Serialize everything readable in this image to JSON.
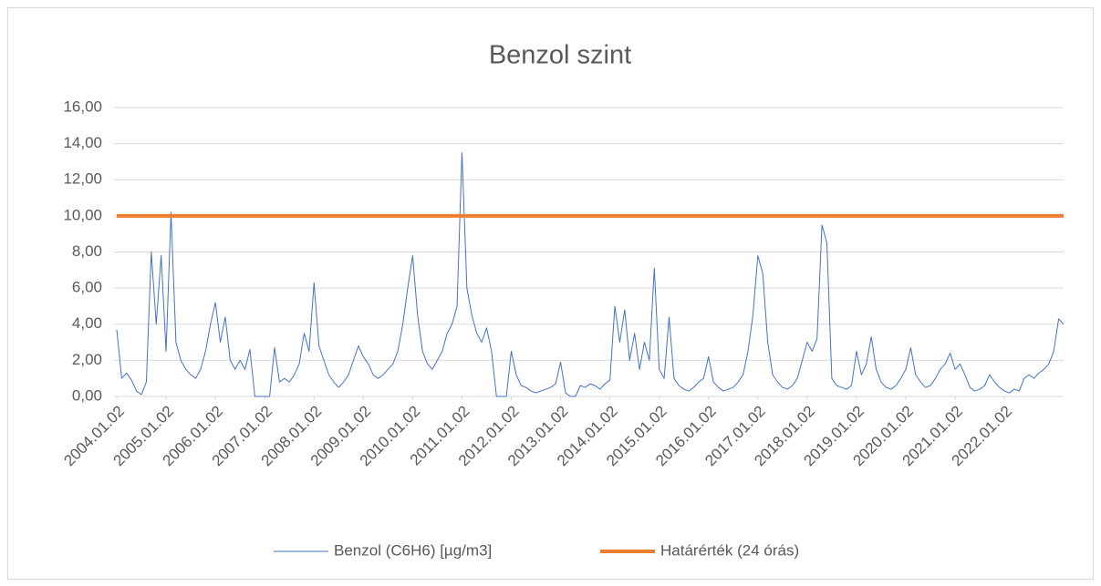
{
  "chart_data": {
    "type": "line",
    "title": "Benzol szint",
    "xlim": [
      2004,
      2023.2
    ],
    "ylim": [
      0,
      16
    ],
    "grid": true,
    "legend": "bottom",
    "yticks": [
      {
        "value": 0,
        "label": "0,00"
      },
      {
        "value": 2,
        "label": "2,00"
      },
      {
        "value": 4,
        "label": "4,00"
      },
      {
        "value": 6,
        "label": "6,00"
      },
      {
        "value": 8,
        "label": "8,00"
      },
      {
        "value": 10,
        "label": "10,00"
      },
      {
        "value": 12,
        "label": "12,00"
      },
      {
        "value": 14,
        "label": "14,00"
      },
      {
        "value": 16,
        "label": "16,00"
      }
    ],
    "xticks": [
      {
        "value": 2004,
        "label": "2004.01.02"
      },
      {
        "value": 2005,
        "label": "2005.01.02"
      },
      {
        "value": 2006,
        "label": "2006.01.02"
      },
      {
        "value": 2007,
        "label": "2007.01.02"
      },
      {
        "value": 2008,
        "label": "2008.01.02"
      },
      {
        "value": 2009,
        "label": "2009.01.02"
      },
      {
        "value": 2010,
        "label": "2010.01.02"
      },
      {
        "value": 2011,
        "label": "2011.01.02"
      },
      {
        "value": 2012,
        "label": "2012.01.02"
      },
      {
        "value": 2013,
        "label": "2013.01.02"
      },
      {
        "value": 2014,
        "label": "2014.01.02"
      },
      {
        "value": 2015,
        "label": "2015.01.02"
      },
      {
        "value": 2016,
        "label": "2016.01.02"
      },
      {
        "value": 2017,
        "label": "2017.01.02"
      },
      {
        "value": 2018,
        "label": "2018.01.02"
      },
      {
        "value": 2019,
        "label": "2019.01.02"
      },
      {
        "value": 2020,
        "label": "2020.01.02"
      },
      {
        "value": 2021,
        "label": "2021.01.02"
      },
      {
        "value": 2022,
        "label": "2022.01.02"
      }
    ],
    "series": [
      {
        "name": "Benzol (C6H6) [µg/m3]",
        "color": "#4472c4",
        "width": 1,
        "x": [
          2004,
          2004.1,
          2004.2,
          2004.3,
          2004.4,
          2004.5,
          2004.6,
          2004.7,
          2004.8,
          2004.9,
          2005,
          2005.1,
          2005.2,
          2005.3,
          2005.4,
          2005.5,
          2005.6,
          2005.7,
          2005.8,
          2005.9,
          2006,
          2006.1,
          2006.2,
          2006.3,
          2006.4,
          2006.5,
          2006.6,
          2006.7,
          2006.8,
          2006.9,
          2007,
          2007.1,
          2007.2,
          2007.3,
          2007.4,
          2007.5,
          2007.6,
          2007.7,
          2007.8,
          2007.9,
          2008,
          2008.1,
          2008.2,
          2008.3,
          2008.4,
          2008.5,
          2008.6,
          2008.7,
          2008.8,
          2008.9,
          2009,
          2009.1,
          2009.2,
          2009.3,
          2009.4,
          2009.5,
          2009.6,
          2009.7,
          2009.8,
          2009.9,
          2010,
          2010.1,
          2010.2,
          2010.3,
          2010.4,
          2010.5,
          2010.6,
          2010.7,
          2010.8,
          2010.9,
          2011,
          2011.1,
          2011.2,
          2011.3,
          2011.4,
          2011.5,
          2011.6,
          2011.7,
          2011.8,
          2011.9,
          2012,
          2012.1,
          2012.2,
          2012.3,
          2012.4,
          2012.5,
          2012.6,
          2012.7,
          2012.8,
          2012.9,
          2013,
          2013.1,
          2013.2,
          2013.3,
          2013.4,
          2013.5,
          2013.6,
          2013.7,
          2013.8,
          2013.9,
          2014,
          2014.1,
          2014.2,
          2014.3,
          2014.4,
          2014.5,
          2014.6,
          2014.7,
          2014.8,
          2014.9,
          2015,
          2015.1,
          2015.2,
          2015.3,
          2015.4,
          2015.5,
          2015.6,
          2015.7,
          2015.8,
          2015.9,
          2016,
          2016.1,
          2016.2,
          2016.3,
          2016.4,
          2016.5,
          2016.6,
          2016.7,
          2016.8,
          2016.9,
          2017,
          2017.1,
          2017.2,
          2017.3,
          2017.4,
          2017.5,
          2017.6,
          2017.7,
          2017.8,
          2017.9,
          2018,
          2018.1,
          2018.2,
          2018.3,
          2018.4,
          2018.5,
          2018.6,
          2018.7,
          2018.8,
          2018.9,
          2019,
          2019.1,
          2019.2,
          2019.3,
          2019.4,
          2019.5,
          2019.6,
          2019.7,
          2019.8,
          2019.9,
          2020,
          2020.1,
          2020.2,
          2020.3,
          2020.4,
          2020.5,
          2020.6,
          2020.7,
          2020.8,
          2020.9,
          2021,
          2021.1,
          2021.2,
          2021.3,
          2021.4,
          2021.5,
          2021.6,
          2021.7,
          2021.8,
          2021.9,
          2022,
          2022.1,
          2022.2,
          2022.3,
          2022.4,
          2022.5,
          2022.6,
          2022.7,
          2022.8,
          2022.9,
          2023,
          2023.1,
          2023.2
        ],
        "values": [
          3.7,
          1.0,
          1.3,
          0.9,
          0.3,
          0.1,
          0.8,
          8.0,
          4.0,
          7.8,
          2.5,
          10.2,
          3.0,
          2.0,
          1.5,
          1.2,
          1.0,
          1.5,
          2.5,
          4.0,
          5.2,
          3.0,
          4.4,
          2.0,
          1.5,
          2.0,
          1.5,
          2.6,
          0,
          0,
          0,
          0,
          2.7,
          0.8,
          1.0,
          0.8,
          1.2,
          1.8,
          3.5,
          2.5,
          6.3,
          2.8,
          2.0,
          1.2,
          0.8,
          0.5,
          0.8,
          1.2,
          2.0,
          2.8,
          2.2,
          1.8,
          1.2,
          1.0,
          1.2,
          1.5,
          1.8,
          2.5,
          4.0,
          6.0,
          7.8,
          4.5,
          2.5,
          1.8,
          1.5,
          2.0,
          2.5,
          3.5,
          4.0,
          5.0,
          13.5,
          6.0,
          4.5,
          3.5,
          3.0,
          3.8,
          2.5,
          0,
          0,
          0,
          2.5,
          1.2,
          0.6,
          0.5,
          0.3,
          0.2,
          0.3,
          0.4,
          0.5,
          0.7,
          1.9,
          0.2,
          0,
          0,
          0.6,
          0.5,
          0.7,
          0.6,
          0.4,
          0.7,
          0.9,
          5.0,
          3.0,
          4.8,
          2.0,
          3.5,
          1.5,
          3.0,
          2.0,
          7.1,
          1.5,
          1.0,
          4.4,
          1.0,
          0.6,
          0.4,
          0.3,
          0.5,
          0.8,
          1.0,
          2.2,
          0.8,
          0.5,
          0.3,
          0.4,
          0.5,
          0.8,
          1.2,
          2.5,
          4.5,
          7.8,
          6.8,
          3.0,
          1.2,
          0.8,
          0.5,
          0.4,
          0.6,
          1.0,
          2.0,
          3.0,
          2.5,
          3.2,
          9.5,
          8.5,
          1.0,
          0.6,
          0.5,
          0.4,
          0.6,
          2.5,
          1.2,
          1.8,
          3.3,
          1.5,
          0.8,
          0.5,
          0.4,
          0.6,
          1.0,
          1.5,
          2.7,
          1.2,
          0.8,
          0.5,
          0.6,
          1.0,
          1.5,
          1.8,
          2.4,
          1.5,
          1.8,
          1.2,
          0.5,
          0.3,
          0.4,
          0.6,
          1.2,
          0.8,
          0.5,
          0.3,
          0.2,
          0.4,
          0.3,
          1.0,
          1.2,
          1.0,
          1.3,
          1.5,
          1.8,
          2.5,
          4.3,
          4.0
        ]
      },
      {
        "name": "Határérték (24 órás)",
        "color": "#ed7d31",
        "width": 4,
        "x": [
          2004,
          2023.2
        ],
        "values": [
          10,
          10
        ]
      }
    ]
  }
}
